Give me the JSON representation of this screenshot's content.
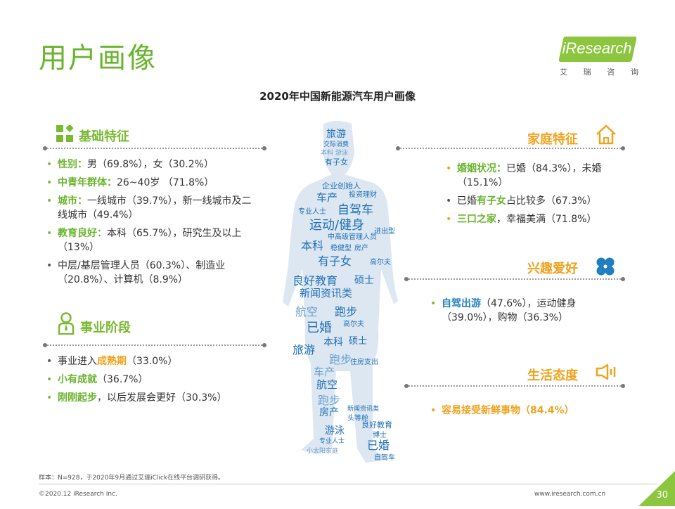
{
  "page_title": "用户画像",
  "logo": {
    "brand": "iResearch",
    "sub": [
      "艾",
      "瑞",
      "咨",
      "询"
    ]
  },
  "chart_title": "2020年中国新能源汽车用户画像",
  "basic": {
    "title": "基础特征",
    "items": [
      {
        "key": "性别：",
        "rest": "男（69.8%），女（30.2%）"
      },
      {
        "key": "中青年群体：",
        "rest": "26~40岁 （71.8%）"
      },
      {
        "key": "城市：",
        "rest": "一线城市（39.7%），新一线城市及二线城市（49.4%）"
      },
      {
        "key": "教育良好：",
        "rest": "本科（65.7%），研究生及以上（13%）"
      },
      {
        "key": "",
        "rest": "中层/基层管理人员（60.3%）、制造业（20.8%）、计算机（8.9%）"
      }
    ]
  },
  "career": {
    "title": "事业阶段",
    "items": [
      {
        "pre": "事业进入",
        "key": "成熟期",
        "rest": "（33.0%）"
      },
      {
        "pre": "",
        "key": "小有成就",
        "rest": "（36.7%）"
      },
      {
        "pre": "",
        "key": "刚刚起步",
        "rest": "，以后发展会更好（30.3%）"
      }
    ]
  },
  "family": {
    "title": "家庭特征",
    "items": [
      {
        "pre": "",
        "key": "婚姻状况：",
        "rest": "已婚（84.3%），未婚（15.1%）"
      },
      {
        "pre": "已婚",
        "key": "有子女",
        "rest": "占比较多（67.3%）"
      },
      {
        "pre": "",
        "key": "三口之家",
        "rest": "，幸福美满（71.8%）"
      }
    ]
  },
  "hobby": {
    "title": "兴趣爱好",
    "items": [
      {
        "key": "自驾出游",
        "rest": "（47.6%），运动健身（39.0%），购物（36.3%）"
      }
    ]
  },
  "attitude": {
    "title": "生活态度",
    "items": [
      {
        "key": "容易接受新鲜事物（84.4%）"
      }
    ]
  },
  "wordcloud": [
    "旅游",
    "交际消费",
    "本科 游泳",
    "有子女",
    "企业创始人",
    "车产",
    "投资理财",
    "自驾车",
    "专业人士",
    "运动/健身",
    "进出型",
    "中高级管理人员",
    "本科",
    "稳健型",
    "房产",
    "有子女",
    "高尔夫",
    "良好教育",
    "硕士",
    "新闻资讯类",
    "航空",
    "跑步",
    "已婚",
    "高尔夫",
    "本科",
    "硕士",
    "旅游",
    "跑步",
    "住房支出",
    "车产",
    "航空",
    "跑步",
    "房产",
    "新闻资讯类",
    "头等舱",
    "良好教育",
    "游泳",
    "博士",
    "专业人士",
    "已婚",
    "小太阳家庭",
    "自驾车"
  ],
  "footer": {
    "note": "样本：N=928，于2020年9月通过艾瑞iClick在线平台调研获得。",
    "copyright": "©2020.12 iResearch Inc.",
    "site": "www.iresearch.com.cn",
    "page": "30"
  }
}
